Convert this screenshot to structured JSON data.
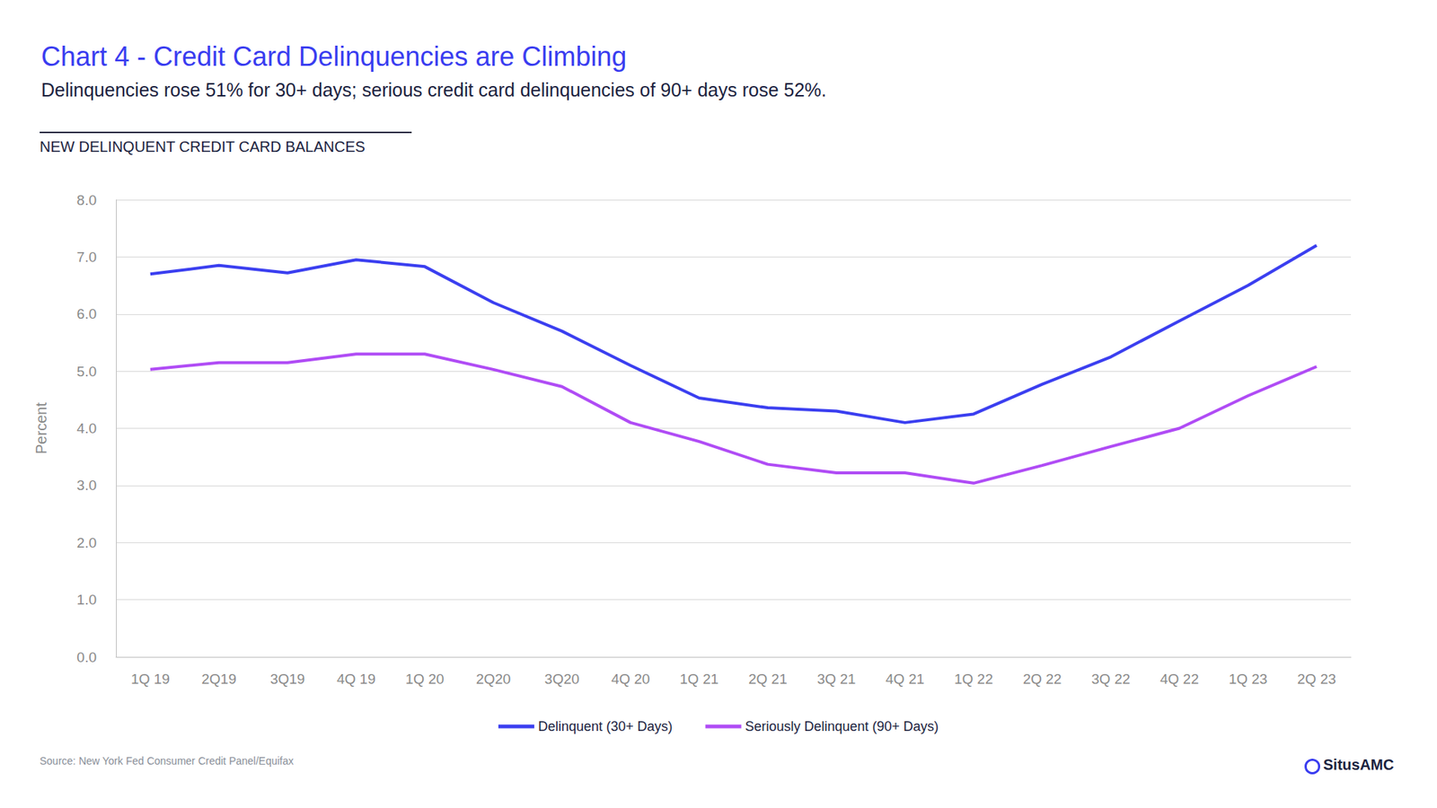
{
  "chart_data": {
    "type": "line",
    "title": "Chart 4 - Credit Card Delinquencies are Climbing",
    "subtitle": "Delinquencies rose 51% for 30+ days; serious credit card delinquencies of 90+ days rose 52%.",
    "chart_label": "NEW DELINQUENT CREDIT CARD BALANCES",
    "ylabel": "Percent",
    "source": "Source: New York Fed Consumer Credit Panel/Equifax",
    "brand": "SitusAMC",
    "categories": [
      "1Q 19",
      "2Q19",
      "3Q19",
      "4Q 19",
      "1Q 20",
      "2Q20",
      "3Q20",
      "4Q 20",
      "1Q 21",
      "2Q 21",
      "3Q 21",
      "4Q 21",
      "1Q 22",
      "2Q 22",
      "3Q 22",
      "4Q 22",
      "1Q 23",
      "2Q 23"
    ],
    "series": [
      {
        "name": "Delinquent (30+ Days)",
        "color": "#3b3ff0",
        "values": [
          6.7,
          6.85,
          6.72,
          6.95,
          6.83,
          6.2,
          5.7,
          5.1,
          4.53,
          4.36,
          4.3,
          4.1,
          4.25,
          4.77,
          5.25,
          5.88,
          6.5,
          7.2
        ]
      },
      {
        "name": "Seriously Delinquent (90+ Days)",
        "color": "#b04cf5",
        "values": [
          5.03,
          5.15,
          5.15,
          5.3,
          5.3,
          5.03,
          4.73,
          4.1,
          3.77,
          3.37,
          3.22,
          3.22,
          3.04,
          3.35,
          3.68,
          4.0,
          4.57,
          5.08
        ]
      }
    ],
    "ylim": [
      0,
      8
    ],
    "yticks": [
      {
        "value": 0,
        "label": "0.0"
      },
      {
        "value": 1,
        "label": "1.0"
      },
      {
        "value": 2,
        "label": "2.0"
      },
      {
        "value": 3,
        "label": "3.0"
      },
      {
        "value": 4,
        "label": "4.0"
      },
      {
        "value": 5,
        "label": "5.0"
      },
      {
        "value": 6,
        "label": "6.0"
      },
      {
        "value": 7,
        "label": "7.0"
      },
      {
        "value": 8,
        "label": "8.0"
      }
    ],
    "grid": true,
    "legend": "bottom"
  }
}
